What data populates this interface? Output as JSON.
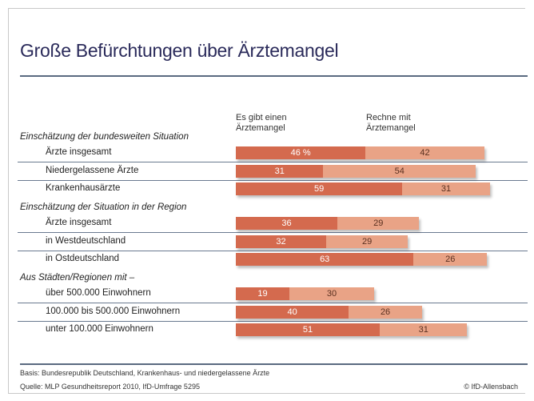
{
  "chart_data": {
    "type": "bar",
    "orientation": "horizontal",
    "stacked": true,
    "title": "Große Befürchtungen über Ärztemangel",
    "unit_label": "%",
    "series": [
      {
        "name": "Es gibt einen Ärztemangel",
        "color": "#d46a4e"
      },
      {
        "name": "Rechne mit Ärztemangel",
        "color": "#e9a386"
      }
    ],
    "groups": [
      {
        "label": "Einschätzung der bundesweiten Situation",
        "rows": [
          {
            "label": "Ärzte insgesamt",
            "values": [
              46,
              42
            ],
            "first_label": "46 %"
          },
          {
            "label": "Niedergelassene Ärzte",
            "values": [
              31,
              54
            ]
          },
          {
            "label": "Krankenhausärzte",
            "values": [
              59,
              31
            ]
          }
        ]
      },
      {
        "label": "Einschätzung der Situation in der Region",
        "rows": [
          {
            "label": "Ärzte insgesamt",
            "values": [
              36,
              29
            ]
          },
          {
            "label": "in Westdeutschland",
            "values": [
              32,
              29
            ]
          },
          {
            "label": "in Ostdeutschland",
            "values": [
              63,
              26
            ]
          }
        ]
      },
      {
        "label": "Aus Städten/Regionen mit –",
        "rows": [
          {
            "label": "über 500.000 Einwohnern",
            "values": [
              19,
              30
            ]
          },
          {
            "label": "100.000 bis 500.000 Einwohnern",
            "values": [
              40,
              26
            ]
          },
          {
            "label": "unter 100.000 Einwohnern",
            "values": [
              51,
              31
            ]
          }
        ]
      }
    ]
  },
  "headers": {
    "col1_line1": "Es gibt einen",
    "col1_line2": "Ärztemangel",
    "col2_line1": "Rechne mit",
    "col2_line2": "Ärztemangel"
  },
  "footer": {
    "basis": "Basis: Bundesrepublik Deutschland, Krankenhaus- und niedergelassene Ärzte",
    "source": "Quelle: MLP Gesundheitsreport 2010, IfD-Umfrage 5295",
    "copyright": "© IfD-Allensbach"
  }
}
